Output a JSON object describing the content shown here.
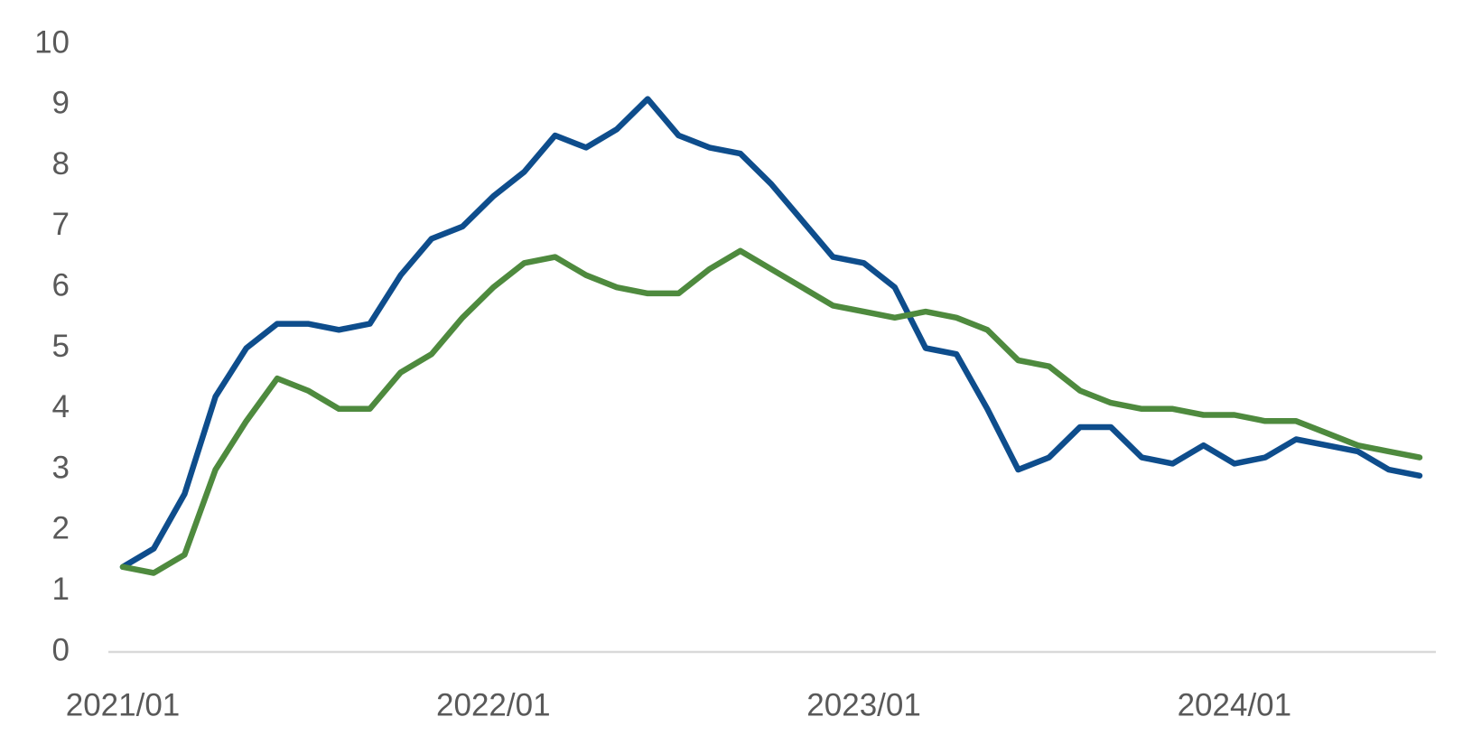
{
  "chart_data": {
    "type": "line",
    "categories": [
      "2021/01",
      null,
      null,
      null,
      null,
      null,
      null,
      null,
      null,
      null,
      null,
      null,
      "2022/01",
      null,
      null,
      null,
      null,
      null,
      null,
      null,
      null,
      null,
      null,
      null,
      "2023/01",
      null,
      null,
      null,
      null,
      null,
      null,
      null,
      null,
      null,
      null,
      null,
      "2024/01",
      null,
      null,
      null,
      null,
      null,
      null
    ],
    "series": [
      {
        "color": "#0e4d8c",
        "values": [
          1.4,
          1.7,
          2.6,
          4.2,
          5.0,
          5.4,
          5.4,
          5.3,
          5.4,
          6.2,
          6.8,
          7.0,
          7.5,
          7.9,
          8.5,
          8.3,
          8.6,
          9.1,
          8.5,
          8.3,
          8.2,
          7.7,
          7.1,
          6.5,
          6.4,
          6.0,
          5.0,
          4.9,
          4.0,
          3.0,
          3.2,
          3.7,
          3.7,
          3.2,
          3.1,
          3.4,
          3.1,
          3.2,
          3.5,
          3.4,
          3.3,
          3.0,
          2.9
        ]
      },
      {
        "color": "#4e8a3e",
        "values": [
          1.4,
          1.3,
          1.6,
          3.0,
          3.8,
          4.5,
          4.3,
          4.0,
          4.0,
          4.6,
          4.9,
          5.5,
          6.0,
          6.4,
          6.5,
          6.2,
          6.0,
          5.9,
          5.9,
          6.3,
          6.6,
          6.3,
          6.0,
          5.7,
          5.6,
          5.5,
          5.6,
          5.5,
          5.3,
          4.8,
          4.7,
          4.3,
          4.1,
          4.0,
          4.0,
          3.9,
          3.9,
          3.8,
          3.8,
          3.6,
          3.4,
          3.3,
          3.2
        ]
      }
    ],
    "ylim": [
      0,
      10
    ],
    "yticks": [
      0,
      1,
      2,
      3,
      4,
      5,
      6,
      7,
      8,
      9,
      10
    ],
    "grid": false
  }
}
